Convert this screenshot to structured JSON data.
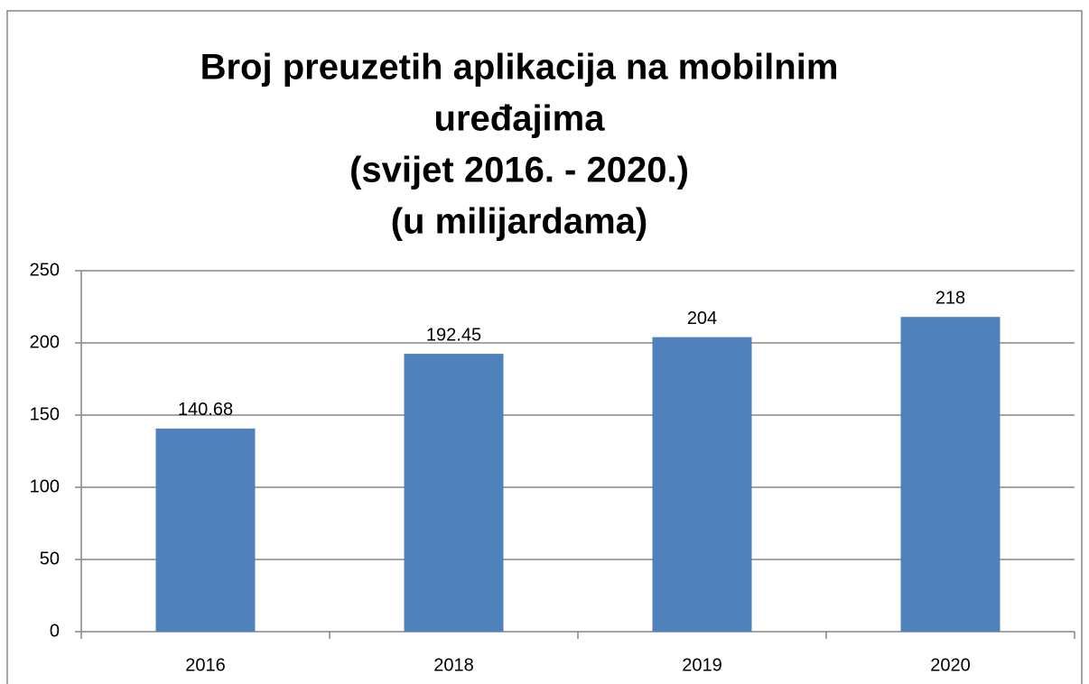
{
  "chart_data": {
    "type": "bar",
    "title": [
      "Broj preuzetih aplikacija na mobilnim",
      "uređajima",
      "(svijet 2016. - 2020.)",
      "(u milijardama)"
    ],
    "categories": [
      "2016",
      "2018",
      "2019",
      "2020"
    ],
    "values": [
      140.68,
      192.45,
      204,
      218
    ],
    "color": "#4f81bd",
    "ylim": [
      0,
      250
    ],
    "yticks": [
      0,
      50,
      100,
      150,
      200,
      250
    ],
    "grid": true
  }
}
